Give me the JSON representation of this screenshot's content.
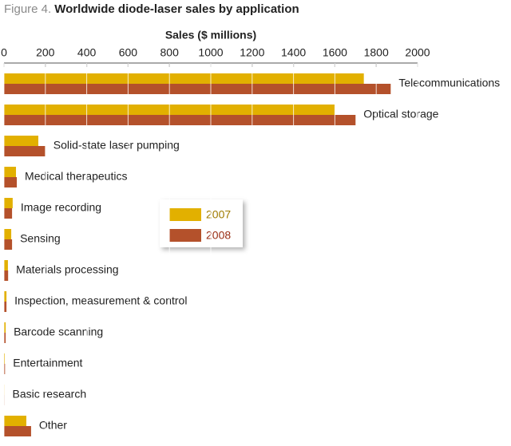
{
  "chart_data": {
    "type": "hbar",
    "figure_label": "Figure 4.",
    "title": "Worldwide diode-laser sales by application",
    "x_label": "Sales ($ millions)",
    "categories": [
      "Telecommunications",
      "Optical storage",
      "Solid-state laser pumping",
      "Medical therapeutics",
      "Image recording",
      "Sensing",
      "Materials processing",
      "Inspection, measurement & control",
      "Barcode scanning",
      "Entertainment",
      "Basic research",
      "Other"
    ],
    "series": [
      {
        "name": "2007",
        "color": "#e2b000",
        "label_color": "#a07c00",
        "values": [
          1740,
          1600,
          166,
          58,
          42,
          35,
          19,
          12,
          8,
          4,
          2,
          108
        ]
      },
      {
        "name": "2008",
        "color": "#b4512b",
        "label_color": "#9a2e14",
        "values": [
          1870,
          1700,
          200,
          62,
          39,
          39,
          20,
          12,
          8,
          5,
          2,
          131
        ]
      }
    ],
    "xlim": [
      0,
      2000
    ],
    "xticks": [
      0,
      200,
      400,
      600,
      800,
      1000,
      1200,
      1400,
      1600,
      1800,
      2000
    ],
    "grid": true
  }
}
